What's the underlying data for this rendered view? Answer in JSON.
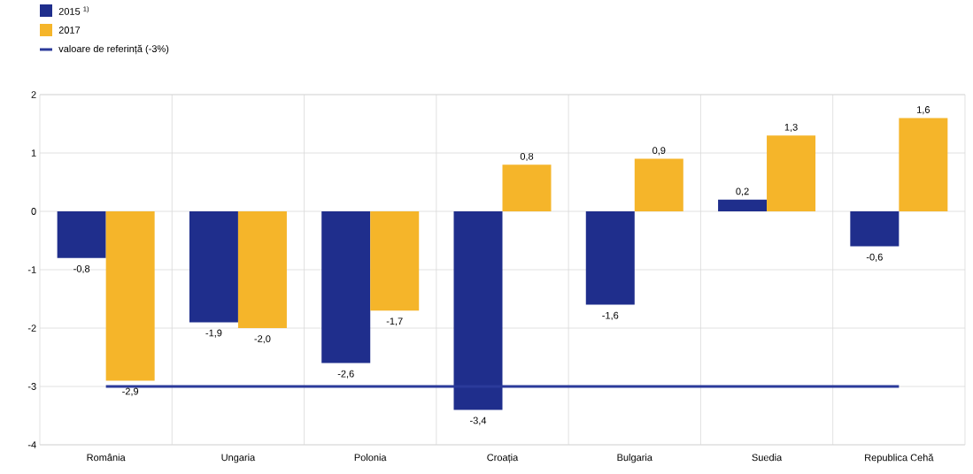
{
  "chart_data": {
    "type": "bar",
    "categories": [
      "România",
      "Ungaria",
      "Polonia",
      "Croația",
      "Bulgaria",
      "Suedia",
      "Republica Cehă"
    ],
    "series": [
      {
        "name": "2015 $^{1)}$",
        "color": "#1f2e8c",
        "values": [
          -0.8,
          -1.9,
          -2.6,
          -3.4,
          -1.6,
          0.2,
          -0.6
        ],
        "value_labels": [
          "-0,8",
          "-1,9",
          "-2,6",
          "-3,4",
          "-1,6",
          "0,2",
          "-0,6"
        ]
      },
      {
        "name": "2017",
        "color": "#f5b52a",
        "values": [
          -2.9,
          -2.0,
          -1.7,
          0.8,
          0.9,
          1.3,
          1.6
        ],
        "value_labels": [
          "-2,9",
          "-2,0",
          "-1,7",
          "0,8",
          "0,9",
          "1,3",
          "1,6"
        ]
      }
    ],
    "ref_lines": [
      {
        "axis": "y",
        "value": -3,
        "label": "valoare de referință (-3%)",
        "color": "#2b3a9a"
      }
    ],
    "ylim": [
      -4,
      2
    ],
    "yticks": [
      -4,
      -3,
      -2,
      -1,
      0,
      1,
      2
    ],
    "grid": true,
    "legend": "top left"
  }
}
